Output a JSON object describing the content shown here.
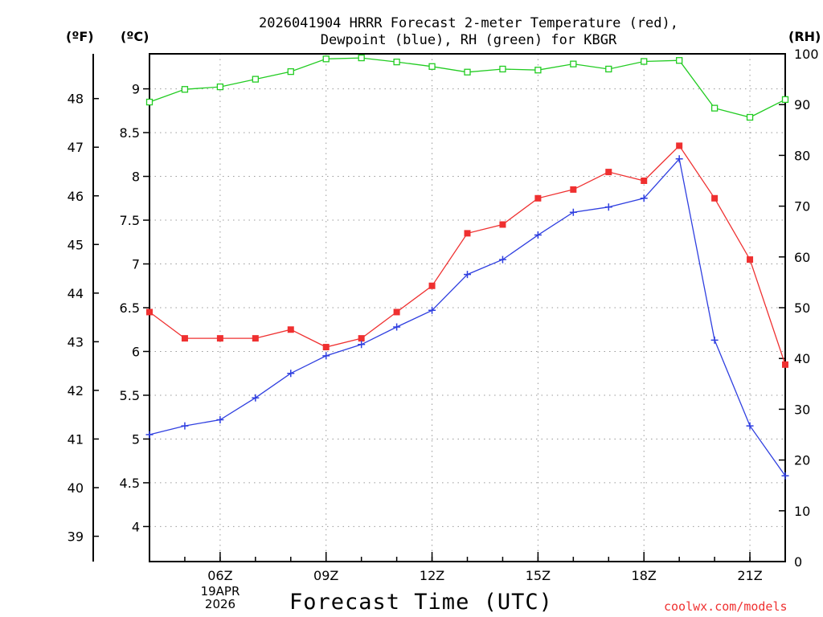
{
  "chart_data": {
    "type": "line",
    "title_line1": "2026041904 HRRR Forecast 2-meter Temperature (red),",
    "title_line2": "Dewpoint (blue), RH (green) for KBGR",
    "xlabel": "Forecast Time (UTC)",
    "date_label": {
      "line1": "19APR",
      "line2": "2026"
    },
    "credit": "coolwx.com/models",
    "axis_labels": {
      "fahrenheit": "(ºF)",
      "celsius": "(ºC)",
      "rh": "(RH)"
    },
    "x": [
      4,
      5,
      6,
      7,
      8,
      9,
      10,
      11,
      12,
      13,
      14,
      15,
      16,
      17,
      18,
      19,
      20,
      21,
      22
    ],
    "xlim": [
      4,
      22
    ],
    "x_ticks": [
      6,
      9,
      12,
      15,
      18,
      21
    ],
    "x_tick_labels": [
      "06Z",
      "09Z",
      "12Z",
      "15Z",
      "18Z",
      "21Z"
    ],
    "ylim_celsius": [
      3.6,
      9.4
    ],
    "y_ticks_celsius": [
      4,
      4.5,
      5,
      5.5,
      6,
      6.5,
      7,
      7.5,
      8,
      8.5,
      9
    ],
    "y_tick_labels_celsius": [
      "4",
      "4.5",
      "5",
      "5.5",
      "6",
      "6.5",
      "7",
      "7.5",
      "8",
      "8.5",
      "9"
    ],
    "y_ticks_fahrenheit": [
      39,
      40,
      41,
      42,
      43,
      44,
      45,
      46,
      47,
      48
    ],
    "y_tick_labels_fahrenheit": [
      "39",
      "40",
      "41",
      "42",
      "43",
      "44",
      "45",
      "46",
      "47",
      "48"
    ],
    "ylim_rh": [
      0,
      100
    ],
    "y_ticks_rh": [
      0,
      10,
      20,
      30,
      40,
      50,
      60,
      70,
      80,
      90,
      100
    ],
    "y_tick_labels_rh": [
      "0",
      "10",
      "20",
      "30",
      "40",
      "50",
      "60",
      "70",
      "80",
      "90",
      "100"
    ],
    "grid": true,
    "series": [
      {
        "name": "Temperature",
        "axis": "celsius",
        "color": "#ef3030",
        "marker": "filled-square",
        "values": [
          6.45,
          6.15,
          6.15,
          6.15,
          6.25,
          6.05,
          6.15,
          6.45,
          6.75,
          7.35,
          7.45,
          7.75,
          7.85,
          8.05,
          7.95,
          8.35,
          7.75,
          7.05,
          5.85
        ]
      },
      {
        "name": "Dewpoint",
        "axis": "celsius",
        "color": "#2f3fe0",
        "marker": "plus",
        "values": [
          5.05,
          5.15,
          5.22,
          5.47,
          5.75,
          5.95,
          6.08,
          6.28,
          6.47,
          6.88,
          7.05,
          7.33,
          7.59,
          7.65,
          7.75,
          8.2,
          6.13,
          5.15,
          4.58
        ]
      },
      {
        "name": "RH",
        "axis": "rh",
        "color": "#22cc22",
        "marker": "open-square",
        "values": [
          90.5,
          93,
          93.5,
          95,
          96.5,
          99,
          99.2,
          98.4,
          97.5,
          96.4,
          97,
          96.8,
          98,
          97,
          98.5,
          98.7,
          89.3,
          87.5,
          91
        ]
      }
    ]
  }
}
